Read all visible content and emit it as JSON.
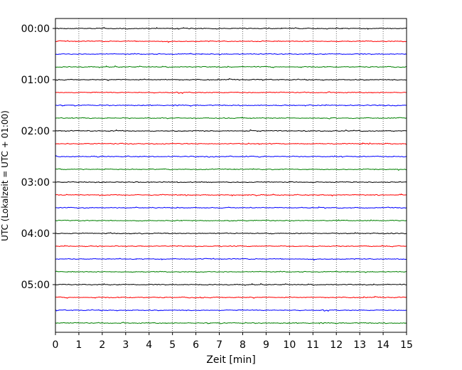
{
  "chart_data": {
    "type": "line",
    "xlabel": "Zeit  [min]",
    "ylabel": "UTC (Lokalzeit = UTC + 01:00)",
    "xlim": [
      0,
      15
    ],
    "x_ticks": [
      0,
      1,
      2,
      3,
      4,
      5,
      6,
      7,
      8,
      9,
      10,
      11,
      12,
      13,
      14,
      15
    ],
    "x_tick_labels": [
      "0",
      "1",
      "2",
      "3",
      "4",
      "5",
      "6",
      "7",
      "8",
      "9",
      "10",
      "11",
      "12",
      "13",
      "14",
      "15"
    ],
    "y_tick_labels": [
      {
        "row": 0,
        "label": "00:00"
      },
      {
        "row": 4,
        "label": "01:00"
      },
      {
        "row": 8,
        "label": "02:00"
      },
      {
        "row": 12,
        "label": "03:00"
      },
      {
        "row": 16,
        "label": "04:00"
      },
      {
        "row": 20,
        "label": "05:00"
      }
    ],
    "grid": "vertical-dotted",
    "trace_minutes": 15,
    "trace_count": 24,
    "trace_colors": [
      "#000000",
      "#ff0000",
      "#0000ff",
      "#008000"
    ]
  }
}
